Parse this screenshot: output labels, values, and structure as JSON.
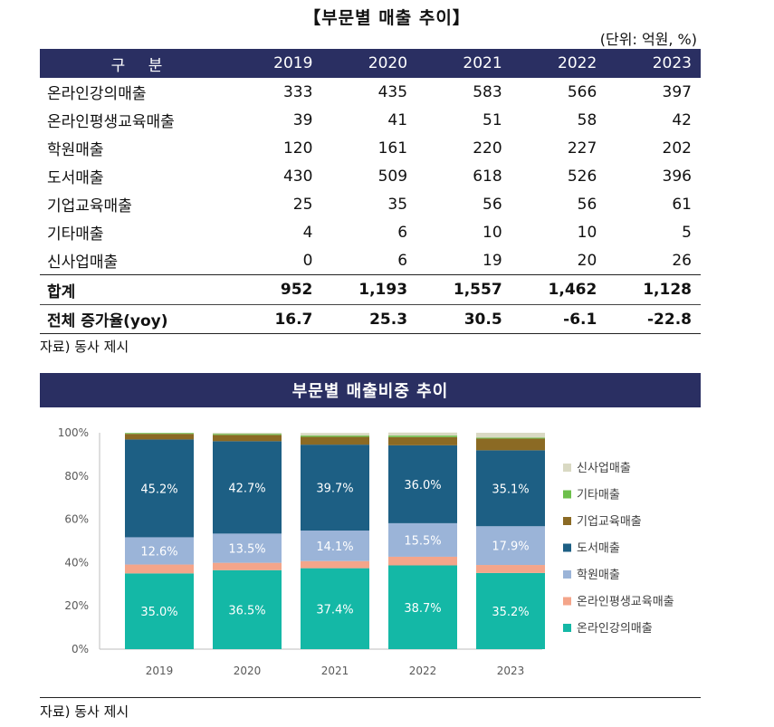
{
  "table": {
    "title": "【부문별 매출 추이】",
    "unit": "(단위: 억원, %)",
    "header": [
      "구 분",
      "2019",
      "2020",
      "2021",
      "2022",
      "2023"
    ],
    "rows": [
      {
        "label": "온라인강의매출",
        "values": [
          "333",
          "435",
          "583",
          "566",
          "397"
        ]
      },
      {
        "label": "온라인평생교육매출",
        "values": [
          "39",
          "41",
          "51",
          "58",
          "42"
        ]
      },
      {
        "label": "학원매출",
        "values": [
          "120",
          "161",
          "220",
          "227",
          "202"
        ]
      },
      {
        "label": "도서매출",
        "values": [
          "430",
          "509",
          "618",
          "526",
          "396"
        ]
      },
      {
        "label": "기업교육매출",
        "values": [
          "25",
          "35",
          "56",
          "56",
          "61"
        ]
      },
      {
        "label": "기타매출",
        "values": [
          "4",
          "6",
          "10",
          "10",
          "5"
        ]
      },
      {
        "label": "신사업매출",
        "values": [
          "0",
          "6",
          "19",
          "20",
          "26"
        ]
      }
    ],
    "total": {
      "label": "합계",
      "values": [
        "952",
        "1,193",
        "1,557",
        "1,462",
        "1,128"
      ]
    },
    "yoy": {
      "label": "전체 증가율(yoy)",
      "values": [
        "16.7",
        "25.3",
        "30.5",
        "-6.1",
        "-22.8"
      ]
    },
    "source": "자료) 동사 제시"
  },
  "chart_section": {
    "banner": "부문별 매출비중 추이",
    "source": "자료) 동사 제시"
  },
  "chart_data": {
    "type": "bar",
    "stacked": true,
    "title": "부문별 매출비중 추이",
    "categories": [
      "2019",
      "2020",
      "2021",
      "2022",
      "2023"
    ],
    "ylim": [
      0,
      100
    ],
    "yticks": [
      "0%",
      "20%",
      "40%",
      "60%",
      "80%",
      "100%"
    ],
    "legend_position": "right",
    "series": [
      {
        "name": "온라인강의매출",
        "color": "#14b8a6",
        "values": [
          35.0,
          36.5,
          37.4,
          38.7,
          35.2
        ],
        "labels": [
          "35.0%",
          "36.5%",
          "37.4%",
          "38.7%",
          "35.2%"
        ]
      },
      {
        "name": "온라인평생교육매출",
        "color": "#f4a58a",
        "values": [
          4.1,
          3.4,
          3.3,
          4.0,
          3.7
        ],
        "labels": null
      },
      {
        "name": "학원매출",
        "color": "#9bb4d8",
        "values": [
          12.6,
          13.5,
          14.1,
          15.5,
          17.9
        ],
        "labels": [
          "12.6%",
          "13.5%",
          "14.1%",
          "15.5%",
          "17.9%"
        ]
      },
      {
        "name": "도서매출",
        "color": "#1d5f84",
        "values": [
          45.2,
          42.7,
          39.7,
          36.0,
          35.1
        ],
        "labels": [
          "45.2%",
          "42.7%",
          "39.7%",
          "36.0%",
          "35.1%"
        ]
      },
      {
        "name": "기업교육매출",
        "color": "#8b6a24",
        "values": [
          2.6,
          2.9,
          3.6,
          3.8,
          5.4
        ],
        "labels": null
      },
      {
        "name": "기타매출",
        "color": "#6dbf4b",
        "values": [
          0.4,
          0.5,
          0.6,
          0.7,
          0.4
        ],
        "labels": null
      },
      {
        "name": "신사업매출",
        "color": "#d9d9c3",
        "values": [
          0.0,
          0.5,
          1.2,
          1.4,
          2.3
        ],
        "labels": null
      }
    ]
  }
}
